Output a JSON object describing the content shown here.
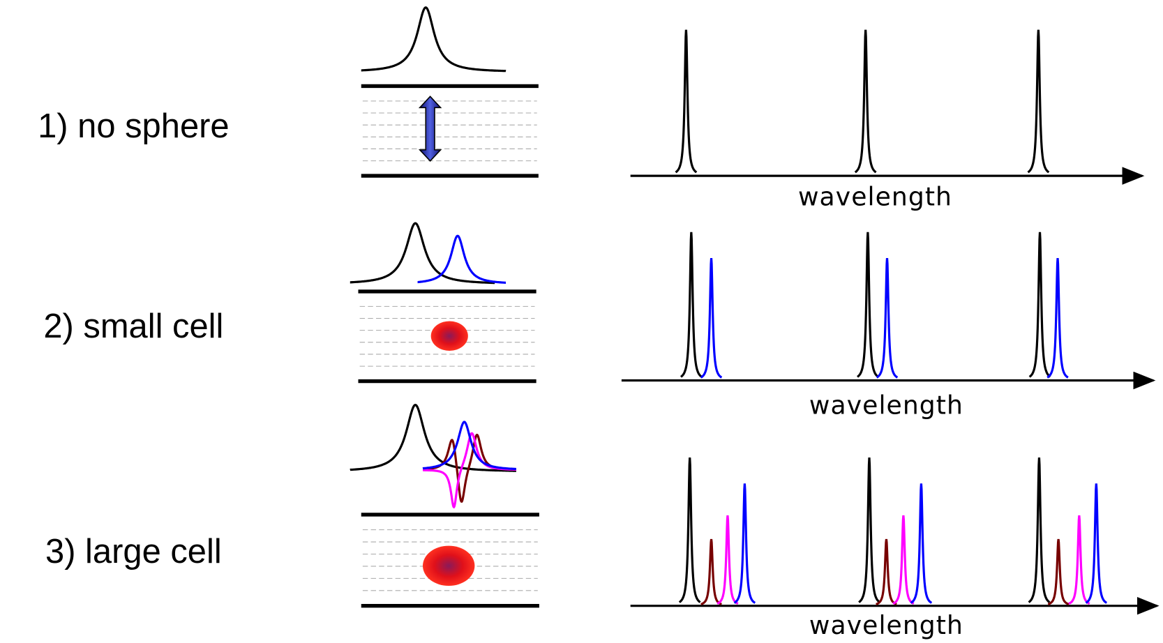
{
  "rows": [
    {
      "label": "1) no sphere",
      "axis_label": "wavelength"
    },
    {
      "label": "2) small cell",
      "axis_label": "wavelength"
    },
    {
      "label": "3) large cell",
      "axis_label": "wavelength"
    }
  ]
}
